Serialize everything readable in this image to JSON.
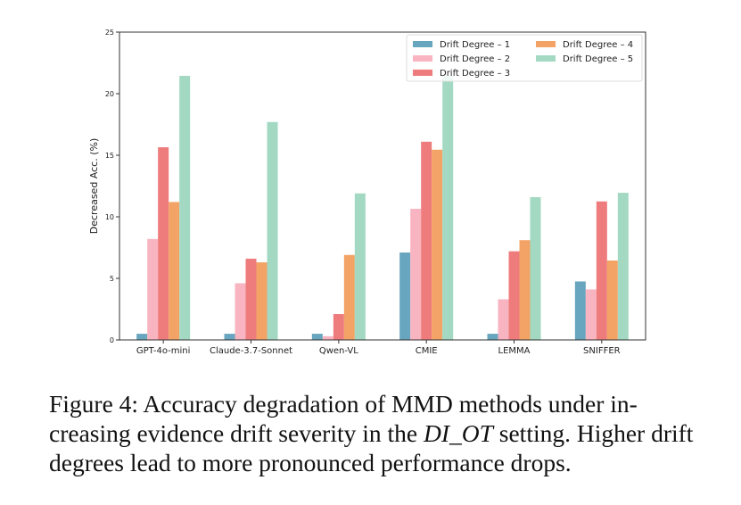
{
  "chart_data": {
    "type": "bar",
    "title": "",
    "xlabel": "",
    "ylabel": "Decreased Acc. (%)",
    "ylim": [
      0,
      25
    ],
    "yticks": [
      0,
      5,
      10,
      15,
      20,
      25
    ],
    "categories": [
      "GPT-4o-mini",
      "Claude-3.7-Sonnet",
      "Qwen-VL",
      "CMIE",
      "LEMMA",
      "SNIFFER"
    ],
    "series": [
      {
        "name": "Drift Degree - 1",
        "color": "#67a6be",
        "values": [
          0.5,
          0.5,
          0.5,
          7.1,
          0.5,
          4.75
        ]
      },
      {
        "name": "Drift Degree - 2",
        "color": "#f8b4c0",
        "values": [
          8.2,
          4.6,
          0.3,
          10.65,
          3.3,
          4.1
        ]
      },
      {
        "name": "Drift Degree - 3",
        "color": "#ef7c7c",
        "values": [
          15.65,
          6.6,
          2.1,
          16.1,
          7.2,
          11.25
        ]
      },
      {
        "name": "Drift Degree - 4",
        "color": "#f2a365",
        "values": [
          11.2,
          6.3,
          6.9,
          15.45,
          8.1,
          6.45
        ]
      },
      {
        "name": "Drift Degree - 5",
        "color": "#a3d9c3",
        "values": [
          21.45,
          17.7,
          11.9,
          21.5,
          11.6,
          11.95
        ]
      }
    ],
    "legend": {
      "position": "top-right",
      "columns": 2
    },
    "grid": false
  },
  "caption": {
    "prefix": "Figure 4: Accuracy degradation of MMD methods under in-creasing evidence drift severity in the ",
    "italic": "DI_OT",
    "suffix": " setting. Higher drift degrees lead to more pronounced performance drops."
  }
}
